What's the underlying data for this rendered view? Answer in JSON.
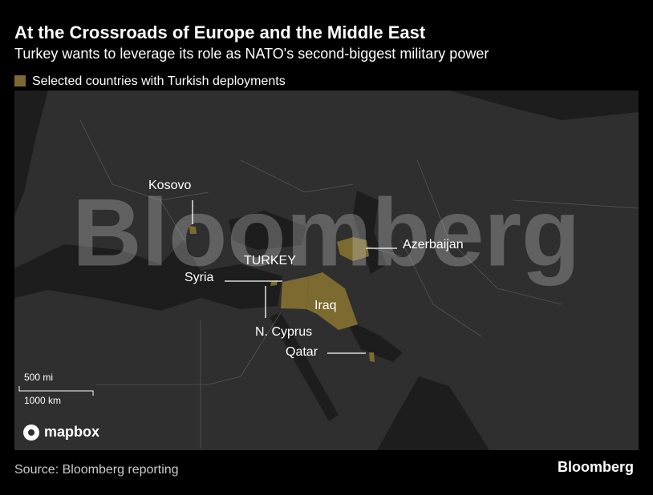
{
  "header": {
    "title": "At the Crossroads of Europe and the Middle East",
    "subtitle": "Turkey wants to leverage its role as NATO's second-biggest military power"
  },
  "legend": {
    "label": "Selected countries with Turkish deployments",
    "color": "#7d6a30"
  },
  "map": {
    "labels": {
      "kosovo": "Kosovo",
      "azerbaijan": "Azerbaijan",
      "turkey": "TURKEY",
      "syria": "Syria",
      "iraq": "Iraq",
      "cyprus": "N. Cyprus",
      "qatar": "Qatar"
    },
    "scale": {
      "miles": "500 mi",
      "km": "1000 km"
    },
    "attribution": "mapbox",
    "watermark": "Bloomberg"
  },
  "footer": {
    "source": "Source: Bloomberg reporting",
    "brand": "Bloomberg"
  }
}
